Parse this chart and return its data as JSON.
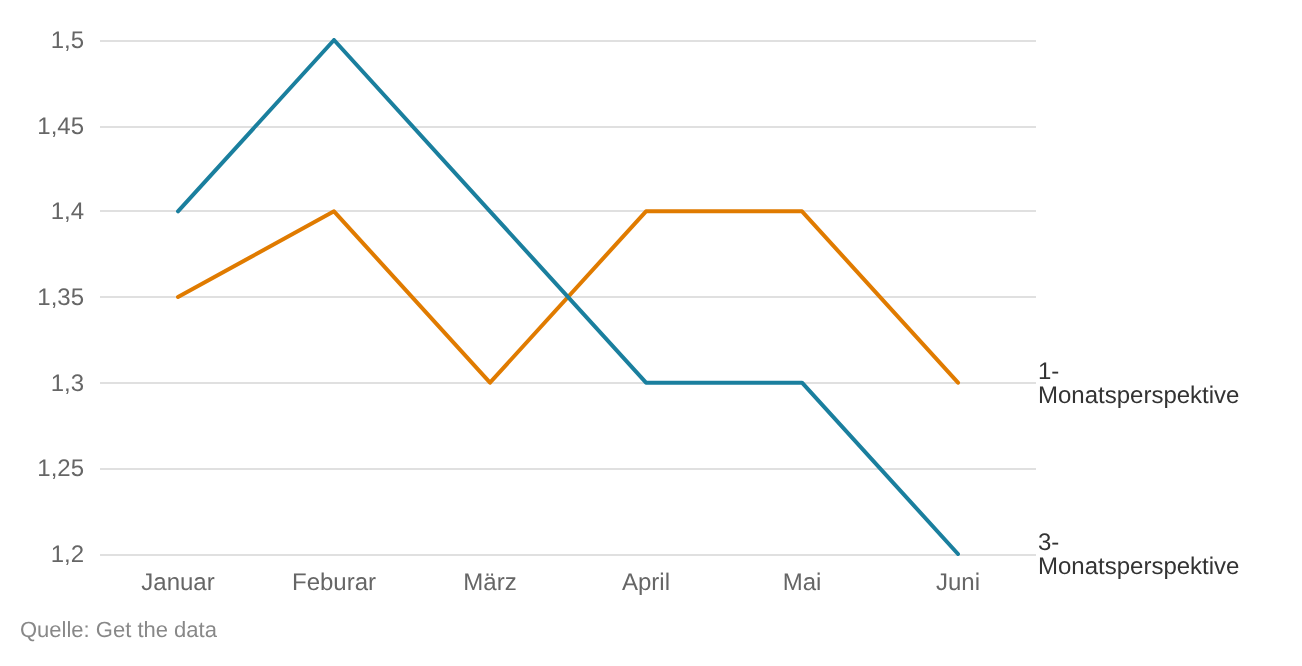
{
  "chart_data": {
    "type": "line",
    "categories": [
      "Januar",
      "Feburar",
      "März",
      "April",
      "Mai",
      "Juni"
    ],
    "series": [
      {
        "name": "1-\nMonatsperspektive",
        "color": "#e07b00",
        "values": [
          1.35,
          1.4,
          1.3,
          1.4,
          1.4,
          1.3
        ]
      },
      {
        "name": "3-\nMonatsperspektive",
        "color": "#1a7f9e",
        "values": [
          1.4,
          1.5,
          1.4,
          1.3,
          1.3,
          1.2
        ]
      }
    ],
    "ylim": [
      1.2,
      1.5
    ],
    "yticks": [
      {
        "value": 1.2,
        "label": "1,2"
      },
      {
        "value": 1.25,
        "label": "1,25"
      },
      {
        "value": 1.3,
        "label": "1,3"
      },
      {
        "value": 1.35,
        "label": "1,35"
      },
      {
        "value": 1.4,
        "label": "1,4"
      },
      {
        "value": 1.45,
        "label": "1,45"
      },
      {
        "value": 1.5,
        "label": "1,5"
      }
    ],
    "grid": "y",
    "legend": false,
    "marker": "none",
    "line_style": "solid",
    "annotations": [
      "Quelle: Get the data"
    ]
  }
}
